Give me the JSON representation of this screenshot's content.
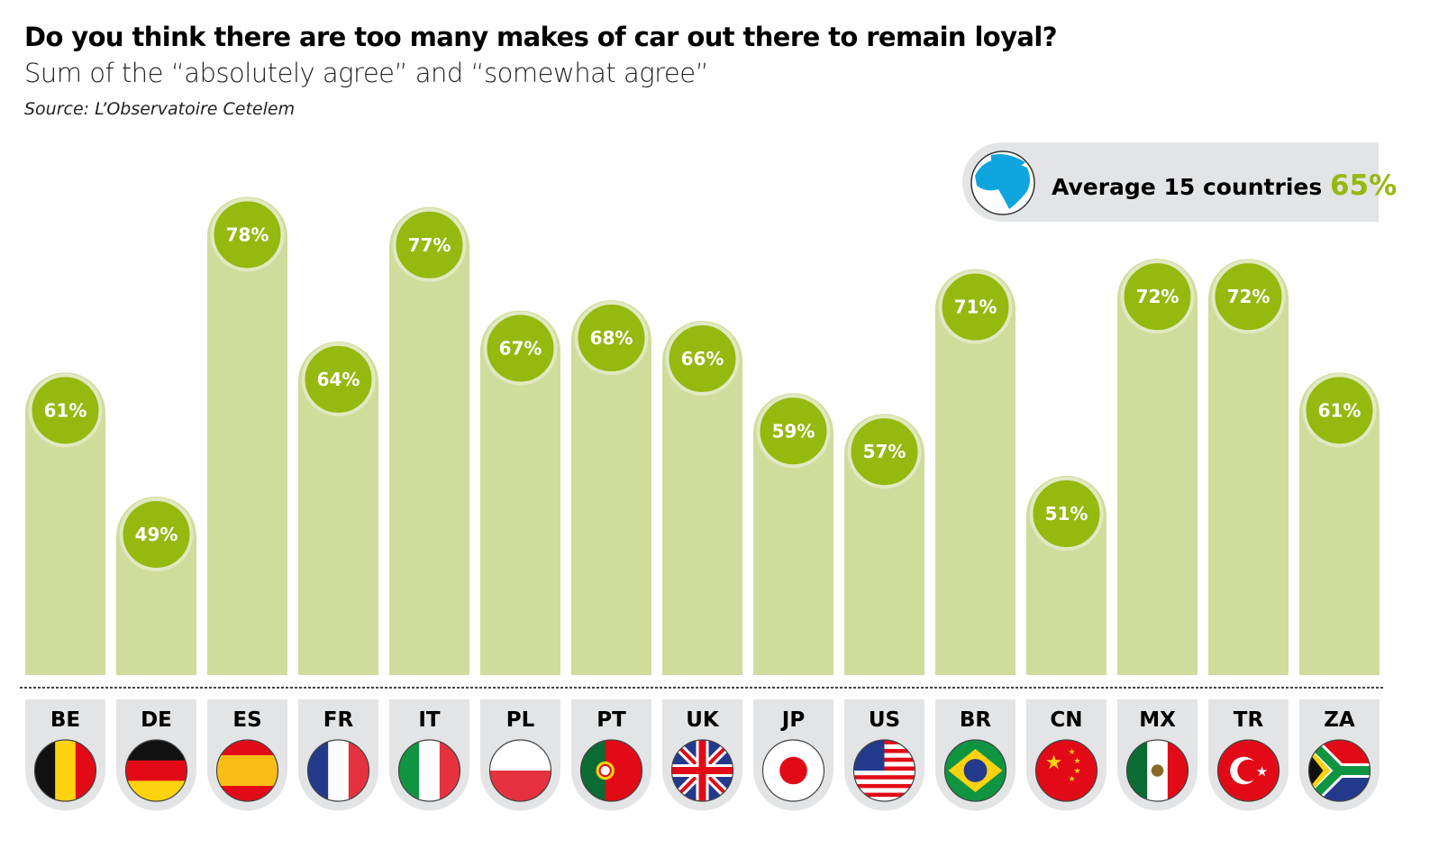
{
  "chart_data": {
    "type": "bar",
    "title": "Do you think there are too many makes of car out there to remain loyal?",
    "subtitle": "Sum of the “absolutely agree” and “somewhat agree”",
    "source": "Source: L’Observatoire Cetelem",
    "categories": [
      "BE",
      "DE",
      "ES",
      "FR",
      "IT",
      "PL",
      "PT",
      "UK",
      "JP",
      "US",
      "BR",
      "CN",
      "MX",
      "TR",
      "ZA"
    ],
    "values": [
      61,
      49,
      78,
      64,
      77,
      67,
      68,
      66,
      59,
      57,
      71,
      51,
      72,
      72,
      61
    ],
    "unit": "%",
    "average": {
      "label": "Average 15 countries",
      "value": "65%"
    },
    "colors": {
      "bar": "#d0dc9c",
      "label_circle": "#95b90f",
      "label_ring": "#e2e8c2",
      "tab": "#e3e4e5",
      "accent": "#95b90f",
      "globe": "#0ea5df"
    }
  }
}
